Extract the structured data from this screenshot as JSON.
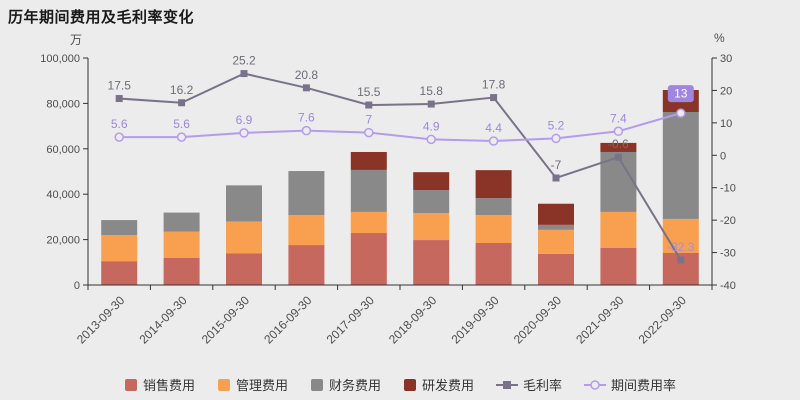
{
  "title": "历年期间费用及毛利率变化",
  "left_axis_unit": "万",
  "right_axis_unit": "%",
  "colors": {
    "background": "#ececec",
    "axis_line": "#333333",
    "axis_text": "#4d4d4d"
  },
  "chart_data": {
    "type": "bar",
    "subtype": "stacked-bars-with-percentage-lines",
    "title": "历年期间费用及毛利率变化",
    "categories": [
      "2013-09-30",
      "2014-09-30",
      "2015-09-30",
      "2016-09-30",
      "2017-09-30",
      "2018-09-30",
      "2019-09-30",
      "2020-09-30",
      "2021-09-30",
      "2022-09-30"
    ],
    "bar_series": [
      {
        "key": "sales-expense",
        "name": "销售费用",
        "color": "#c7685f",
        "values": [
          10500,
          12000,
          14000,
          17600,
          22900,
          19800,
          18500,
          13700,
          16300,
          14100
        ]
      },
      {
        "key": "admin-expense",
        "name": "管理费用",
        "color": "#f8a050",
        "values": [
          11500,
          11500,
          14000,
          13200,
          9300,
          11900,
          12300,
          10600,
          15900,
          15000
        ]
      },
      {
        "key": "finance-expense",
        "name": "财务费用",
        "color": "#898989",
        "values": [
          6600,
          8400,
          15900,
          19400,
          18500,
          10100,
          7500,
          2200,
          26400,
          47100
        ]
      },
      {
        "key": "rd-expense",
        "name": "研发费用",
        "color": "#8a3327",
        "values": [
          0,
          0,
          0,
          0,
          7900,
          7900,
          12300,
          9300,
          4000,
          9700
        ]
      }
    ],
    "line_series": [
      {
        "key": "gross-margin",
        "name": "毛利率",
        "color": "#7a7289",
        "marker": "square",
        "label_color": "#6e6d78",
        "last_label_color": "#a58fd8",
        "values": [
          17.5,
          16.2,
          25.2,
          20.8,
          15.5,
          15.8,
          17.8,
          -7,
          -0.6,
          -32.3
        ]
      },
      {
        "key": "period-expense-ratio",
        "name": "期间费用率",
        "color": "#b49bee",
        "marker": "circle",
        "label_color": "#9d87dd",
        "last_label_badge": true,
        "badge_color": "#9f86e0",
        "values": [
          5.6,
          5.6,
          6.9,
          7.6,
          7,
          4.9,
          4.4,
          5.2,
          7.4,
          13
        ]
      }
    ],
    "left_axis": {
      "min": 0,
      "max": 100000,
      "tick_labels": [
        "0",
        "20,000",
        "40,000",
        "60,000",
        "80,000",
        "100,000"
      ],
      "unit": "万"
    },
    "right_axis": {
      "min": -40,
      "max": 30,
      "tick_labels": [
        "-40",
        "-30",
        "-20",
        "-10",
        "0",
        "10",
        "20",
        "30"
      ],
      "unit": "%"
    },
    "legend_position": "bottom",
    "grid": false
  }
}
